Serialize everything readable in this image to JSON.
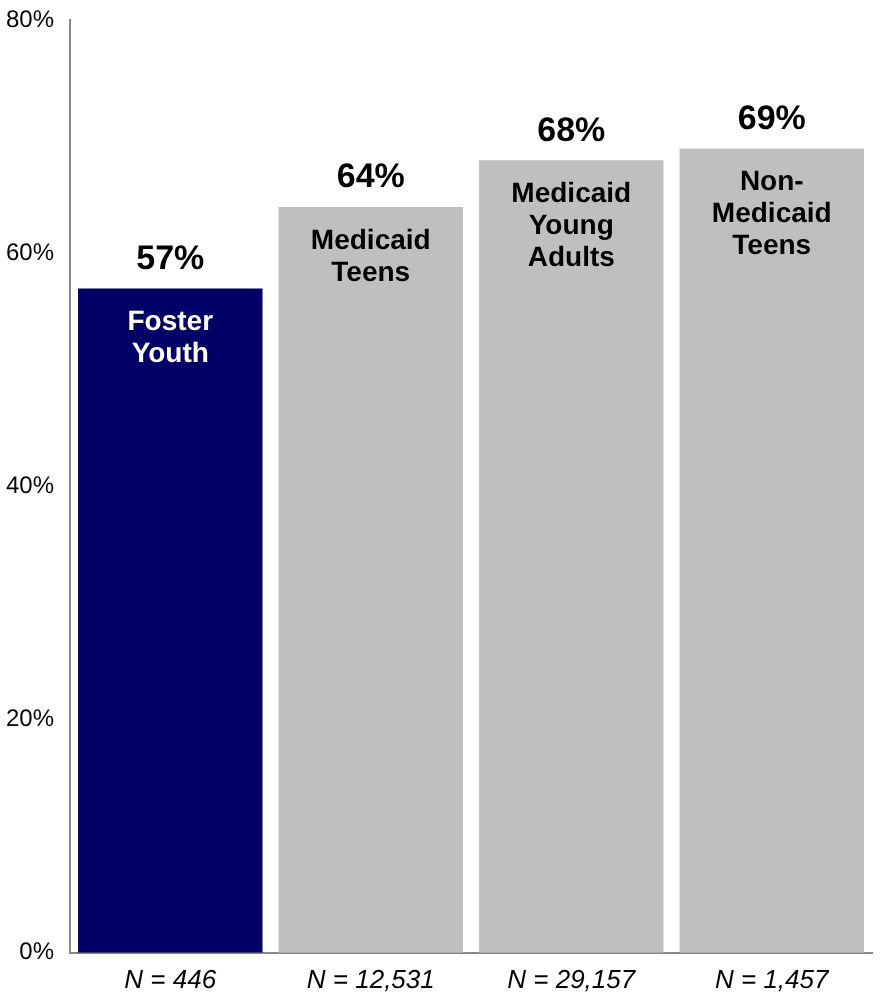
{
  "chart_data": {
    "type": "bar",
    "categories": [
      "N = 446",
      "N = 12,531",
      "N = 29,157",
      "N = 1,457"
    ],
    "values": [
      57,
      64,
      68,
      69
    ],
    "colors": [
      "#000066",
      "#bfbfbf",
      "#bfbfbf",
      "#bfbfbf"
    ],
    "value_labels": [
      "57%",
      "64%",
      "68%",
      "69%"
    ],
    "ylim": [
      0,
      80
    ],
    "yticks": [
      {
        "value": 0,
        "label": "0%"
      },
      {
        "value": 20,
        "label": "20%"
      },
      {
        "value": 40,
        "label": "40%"
      },
      {
        "value": 60,
        "label": "60%"
      },
      {
        "value": 80,
        "label": "80%"
      }
    ],
    "grid": false,
    "legend": false,
    "annotations": [
      {
        "text": "Foster Youth",
        "x": "N = 446",
        "y": 57
      },
      {
        "text": "Medicaid Teens",
        "x": "N = 12,531",
        "y": 64
      },
      {
        "text": "Medicaid Young Adults",
        "x": "N = 29,157",
        "y": 68
      },
      {
        "text": "Non-Medicaid Teens",
        "x": "N = 1,457",
        "y": 69
      }
    ]
  }
}
